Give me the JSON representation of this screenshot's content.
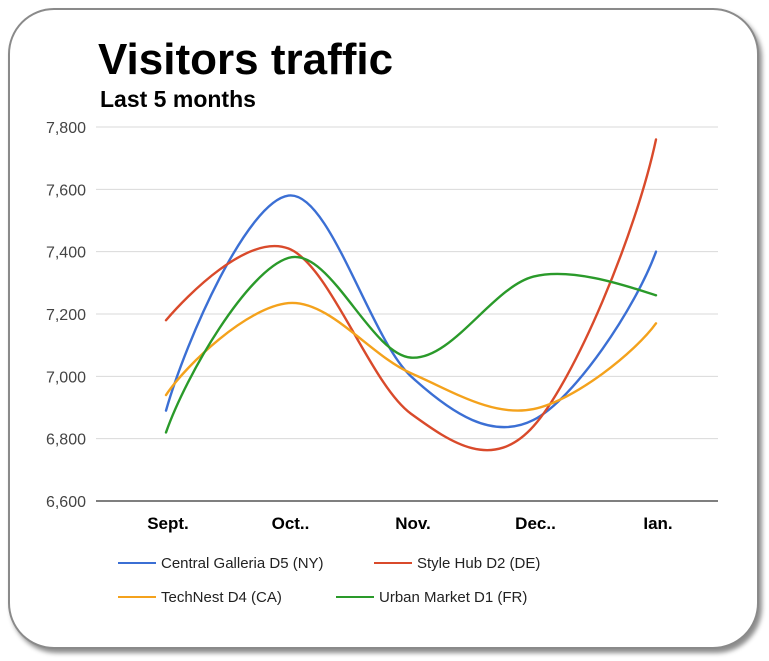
{
  "title": "Visitors traffic",
  "subtitle": "Last 5 months",
  "chart_data": {
    "type": "line",
    "categories": [
      "Sept.",
      "Oct..",
      "Nov.",
      "Dec..",
      "Ian."
    ],
    "ylim": [
      6600,
      7800
    ],
    "yticks": [
      "6,600",
      "6,800",
      "7,000",
      "7,200",
      "7,400",
      "7,600",
      "7,800"
    ],
    "ytick_values": [
      6600,
      6800,
      7000,
      7200,
      7400,
      7600,
      7800
    ],
    "grid": true,
    "legend_position": "bottom",
    "series": [
      {
        "name": "Central Galleria D5 (NY)",
        "color": "#3b6fd4",
        "values": [
          6890,
          7580,
          7000,
          6860,
          7400
        ]
      },
      {
        "name": "Style Hub D2 (DE)",
        "color": "#d94a2b",
        "values": [
          7180,
          7410,
          6880,
          6840,
          7760
        ]
      },
      {
        "name": "TechNest D4 (CA)",
        "color": "#f4a21c",
        "values": [
          6940,
          7235,
          7010,
          6895,
          7170
        ]
      },
      {
        "name": "Urban Market D1 (FR)",
        "color": "#2a9a2a",
        "values": [
          6820,
          7380,
          7060,
          7320,
          7260
        ]
      }
    ]
  }
}
